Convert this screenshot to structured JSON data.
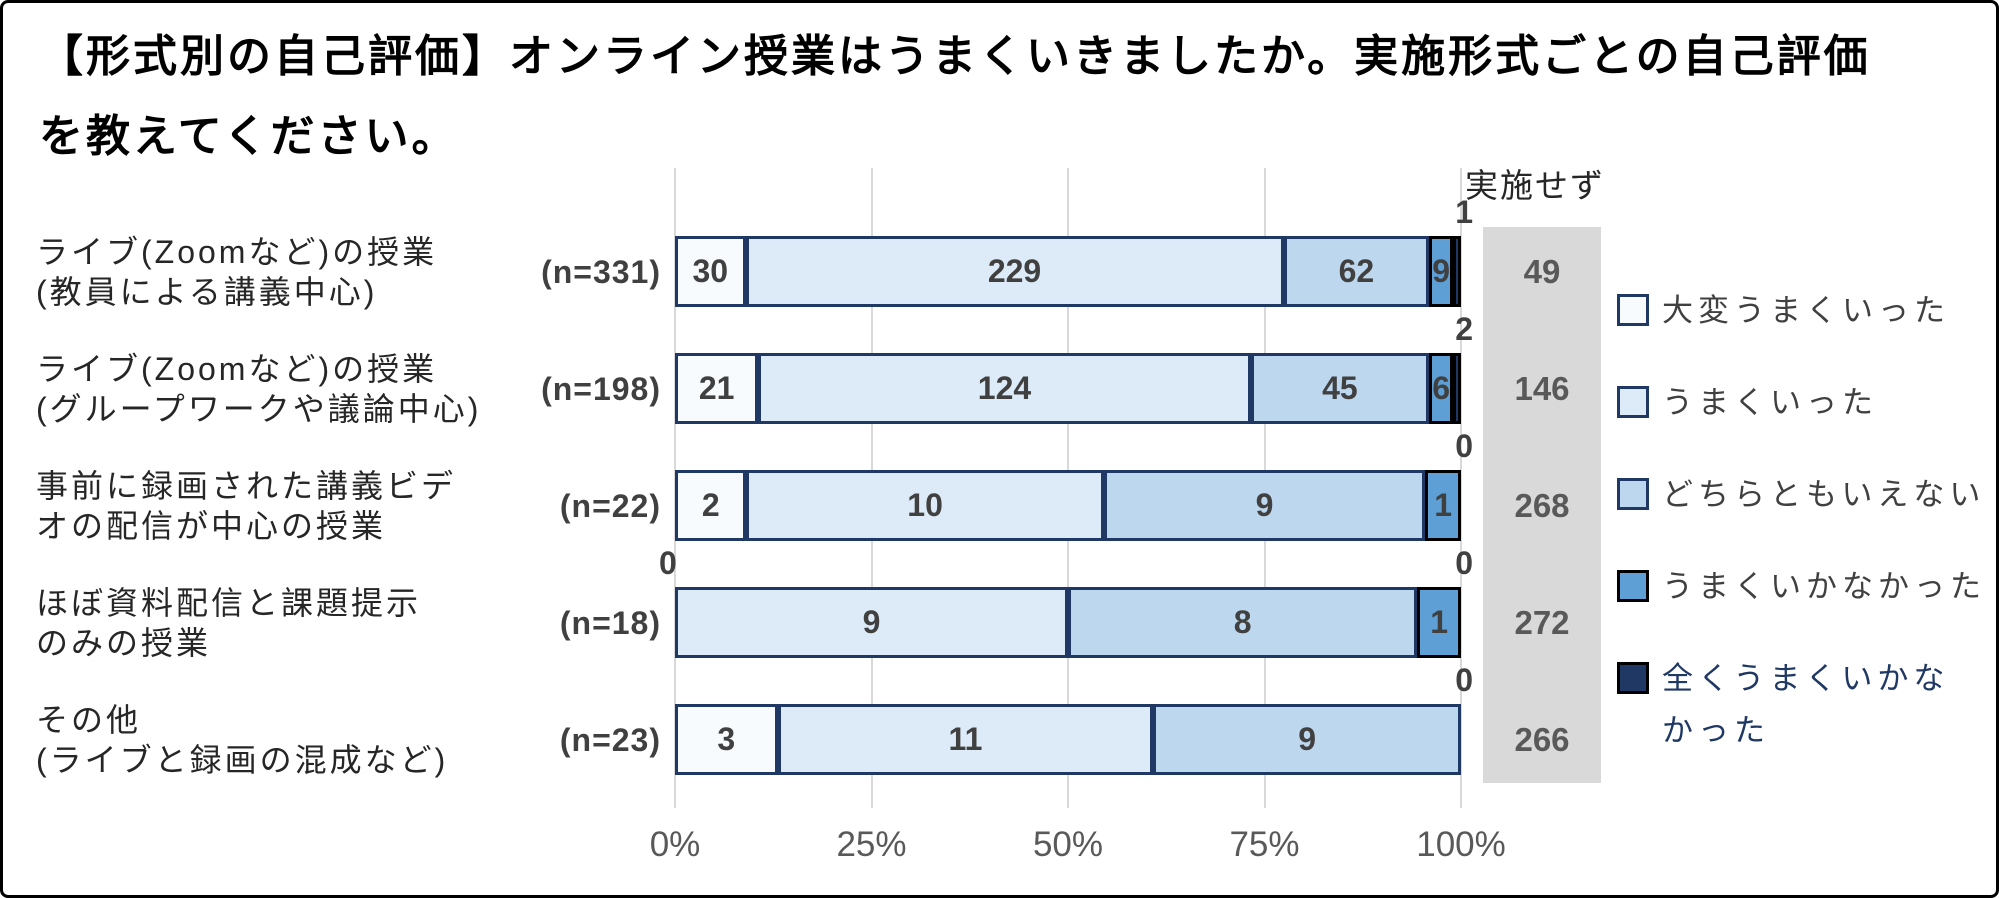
{
  "title": {
    "line1": "【形式別の自己評価】オンライン授業はうまくいきましたか。実施形式ごとの自己評価",
    "line2": "を教えてください。"
  },
  "not_implemented_header": "実施せず",
  "x_ticks": [
    "0%",
    "25%",
    "50%",
    "75%",
    "100%"
  ],
  "colors": {
    "segment_fills": [
      "#F7FBFE",
      "#DCEBF7",
      "#BDD7EE",
      "#5E9FD6",
      "#1F3864"
    ],
    "segment_borders": [
      "#1F3864",
      "#1F3864",
      "#1F3864",
      "#000000",
      "#000000"
    ],
    "grid": "#D9D9D9",
    "not_implemented_bg": "#D9D9D9",
    "value_text": "#404040",
    "category_text": "#262626",
    "axis_text": "#595959",
    "legend_text": "#404040",
    "legend_last_text": "#1F3864",
    "frame_border": "#000000"
  },
  "legend": [
    {
      "label": "大変うまくいった",
      "lines": [
        "大変うまくいった"
      ]
    },
    {
      "label": "うまくいった",
      "lines": [
        "うまくいった"
      ]
    },
    {
      "label": "どちらともいえない",
      "lines": [
        "どちらともいえない"
      ]
    },
    {
      "label": "うまくいかなかった",
      "lines": [
        "うまくいかなかった"
      ]
    },
    {
      "label": "全くうまくいかなかった",
      "lines": [
        "全くうまくいかな",
        "かった"
      ],
      "text_color": "#1F3864"
    }
  ],
  "rows": [
    {
      "label_lines": [
        "ライブ(Zoomなど)の授業",
        "(教員による講義中心)"
      ],
      "n_label": "(n=331)",
      "n": 331,
      "values": [
        30,
        229,
        62,
        9,
        1
      ],
      "callout_left": null,
      "callout_right": "1",
      "not_implemented": "49"
    },
    {
      "label_lines": [
        "ライブ(Zoomなど)の授業",
        "(グループワークや議論中心)"
      ],
      "n_label": "(n=198)",
      "n": 198,
      "values": [
        21,
        124,
        45,
        6,
        2
      ],
      "callout_left": null,
      "callout_right": "2",
      "not_implemented": "146"
    },
    {
      "label_lines": [
        "事前に録画された講義ビデ",
        "オの配信が中心の授業"
      ],
      "n_label": "(n=22)",
      "n": 22,
      "values": [
        2,
        10,
        9,
        1,
        0
      ],
      "callout_left": null,
      "callout_right": "0",
      "not_implemented": "268"
    },
    {
      "label_lines": [
        "ほぼ資料配信と課題提示",
        "のみの授業"
      ],
      "n_label": "(n=18)",
      "n": 18,
      "values": [
        0,
        9,
        8,
        1,
        0
      ],
      "callout_left": "0",
      "callout_right": "0",
      "not_implemented": "272"
    },
    {
      "label_lines": [
        "その他",
        "(ライブと録画の混成など)"
      ],
      "n_label": "(n=23)",
      "n": 23,
      "values": [
        3,
        11,
        9,
        0,
        0
      ],
      "callout_left": null,
      "callout_right": "0",
      "not_implemented": "266"
    }
  ],
  "chart_data": {
    "type": "bar",
    "orientation": "horizontal",
    "stacked": true,
    "title": "【形式別の自己評価】オンライン授業はうまくいきましたか。実施形式ごとの自己評価を教えてください。",
    "categories": [
      "ライブ(Zoomなど)の授業(教員による講義中心) (n=331)",
      "ライブ(Zoomなど)の授業(グループワークや議論中心) (n=198)",
      "事前に録画された講義ビデオの配信が中心の授業 (n=22)",
      "ほぼ資料配信と課題提示のみの授業 (n=18)",
      "その他(ライブと録画の混成など) (n=23)"
    ],
    "n": [
      331,
      198,
      22,
      18,
      23
    ],
    "series": [
      {
        "name": "大変うまくいった",
        "values": [
          30,
          21,
          2,
          0,
          3
        ]
      },
      {
        "name": "うまくいった",
        "values": [
          229,
          124,
          10,
          9,
          11
        ]
      },
      {
        "name": "どちらともいえない",
        "values": [
          62,
          45,
          9,
          8,
          9
        ]
      },
      {
        "name": "うまくいかなかった",
        "values": [
          9,
          6,
          1,
          1,
          0
        ]
      },
      {
        "name": "全くうまくいかなかった",
        "values": [
          1,
          2,
          0,
          0,
          0
        ]
      }
    ],
    "extra_column": {
      "label": "実施せず",
      "values": [
        49,
        146,
        268,
        272,
        266
      ]
    },
    "x_axis": {
      "tick_labels": [
        "0%",
        "25%",
        "50%",
        "75%",
        "100%"
      ],
      "min": 0,
      "max": 100,
      "note": "segment width = value / n as percent"
    },
    "legend_position": "right",
    "grid": true
  }
}
